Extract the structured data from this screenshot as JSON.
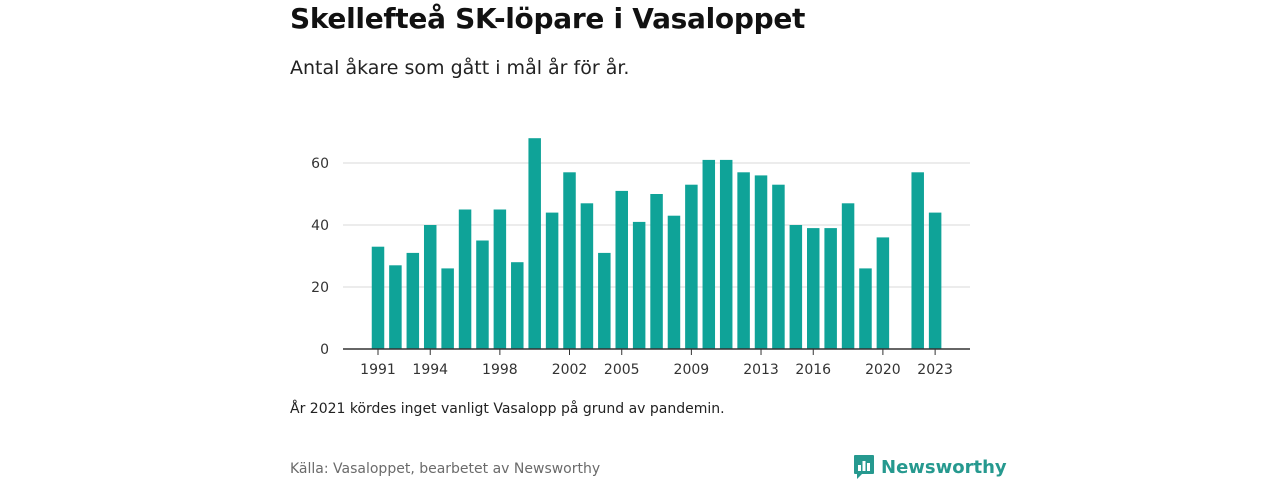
{
  "title": "Skellefteå SK-löpare i Vasaloppet",
  "subtitle": "Antal åkare som gått i mål år för år.",
  "note": "År 2021 kördes inget vanligt Vasalopp på grund av pandemin.",
  "source": "Källa: Vasaloppet, bearbetet av Newsworthy",
  "brand": {
    "name": "Newsworthy",
    "color": "#26998f",
    "icon": "newsworthy-logo-icon"
  },
  "colors": {
    "bar": "#0fa398",
    "grid": "#d9d9d9",
    "axis": "#333333"
  },
  "chart_data": {
    "type": "bar",
    "x": [
      1991,
      1992,
      1993,
      1994,
      1995,
      1996,
      1997,
      1998,
      1999,
      2000,
      2001,
      2002,
      2003,
      2004,
      2005,
      2006,
      2007,
      2008,
      2009,
      2010,
      2011,
      2012,
      2013,
      2014,
      2015,
      2016,
      2017,
      2018,
      2019,
      2020,
      2021,
      2022,
      2023
    ],
    "values": [
      33,
      27,
      31,
      40,
      26,
      45,
      35,
      45,
      28,
      68,
      44,
      57,
      47,
      31,
      51,
      41,
      50,
      43,
      53,
      61,
      61,
      57,
      56,
      53,
      40,
      39,
      39,
      47,
      26,
      36,
      null,
      57,
      44
    ],
    "x_tick_labels": [
      1991,
      1994,
      1998,
      2002,
      2005,
      2009,
      2013,
      2016,
      2020,
      2023
    ],
    "y_ticks": [
      0,
      20,
      40,
      60
    ],
    "ylim": [
      0,
      70
    ],
    "grid": true,
    "legend": "none"
  }
}
